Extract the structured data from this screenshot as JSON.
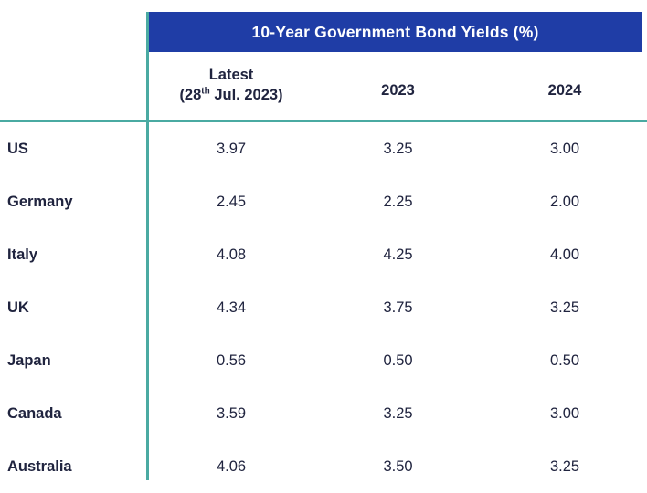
{
  "colors": {
    "header_bg": "#1f3da6",
    "accent_teal": "#4aaaa2",
    "text_navy": "#20243f"
  },
  "table": {
    "title": "10-Year Government Bond Yields (%)",
    "header_latest": {
      "line1": "Latest",
      "line2_prefix": "(28",
      "line2_sup": "th",
      "line2_suffix": " Jul. 2023)"
    },
    "header_2023": "2023",
    "header_2024": "2024"
  },
  "chart_data": {
    "type": "table",
    "title": "10-Year Government Bond Yields (%)",
    "columns": [
      "",
      "Latest (28th Jul. 2023)",
      "2023",
      "2024"
    ],
    "rows": [
      [
        "US",
        "3.97",
        "3.25",
        "3.00"
      ],
      [
        "Germany",
        "2.45",
        "2.25",
        "2.00"
      ],
      [
        "Italy",
        "4.08",
        "4.25",
        "4.00"
      ],
      [
        "UK",
        "4.34",
        "3.75",
        "3.25"
      ],
      [
        "Japan",
        "0.56",
        "0.50",
        "0.50"
      ],
      [
        "Canada",
        "3.59",
        "3.25",
        "3.00"
      ],
      [
        "Australia",
        "4.06",
        "3.50",
        "3.25"
      ]
    ]
  }
}
